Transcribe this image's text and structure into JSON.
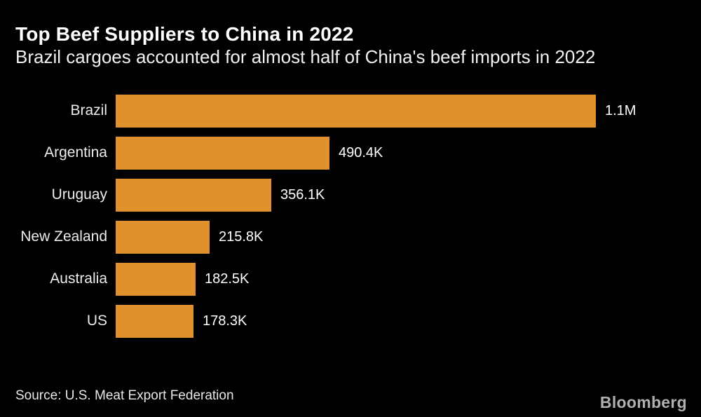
{
  "header": {
    "title": "Top Beef Suppliers to China in 2022",
    "subtitle": "Brazil cargoes accounted for almost half of China's beef imports in 2022"
  },
  "chart_data": {
    "type": "bar",
    "orientation": "horizontal",
    "title": "Top Beef Suppliers to China in 2022",
    "subtitle": "Brazil cargoes accounted for almost half of China's beef imports in 2022",
    "categories": [
      "Brazil",
      "Argentina",
      "Uruguay",
      "New Zealand",
      "Australia",
      "US"
    ],
    "values_in_thousands": [
      1100,
      490.4,
      356.1,
      215.8,
      182.5,
      178.3
    ],
    "value_labels": [
      "1.1M",
      "490.4K",
      "356.1K",
      "215.8K",
      "182.5K",
      "178.3K"
    ],
    "xmax_thousands": 1100,
    "grid": false,
    "legend": false,
    "bar_color": "#E0912D"
  },
  "footer": {
    "source": "Source: U.S. Meat Export Federation",
    "brand": "Bloomberg"
  },
  "colors": {
    "background": "#000000",
    "bar": "#E0912D",
    "title_text": "#FFFFFF",
    "subtitle_text": "#F2F2F2",
    "category_text": "#ECECEC",
    "value_text": "#FFFFFF",
    "source_text": "#E8E8E8",
    "brand_text": "#B0B0B0"
  }
}
